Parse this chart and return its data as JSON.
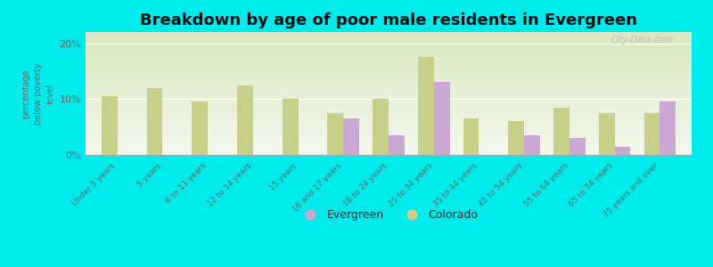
{
  "title": "Breakdown by age of poor male residents in Evergreen",
  "ylabel": "percentage\nbelow poverty\nlevel",
  "categories": [
    "Under 5 years",
    "5 years",
    "6 to 11 years",
    "12 to 14 years",
    "15 years",
    "16 and 17 years",
    "18 to 24 years",
    "25 to 34 years",
    "35 to 44 years",
    "45 to 54 years",
    "55 to 64 years",
    "65 to 74 years",
    "75 years and over"
  ],
  "evergreen": [
    0,
    0,
    0,
    0,
    0,
    6.5,
    3.5,
    13.0,
    0,
    3.5,
    3.0,
    1.5,
    9.5
  ],
  "colorado": [
    10.5,
    12.0,
    9.5,
    12.5,
    10.0,
    7.5,
    10.0,
    17.5,
    6.5,
    6.0,
    8.5,
    7.5,
    7.5
  ],
  "evergreen_color": "#c9a8d4",
  "colorado_color": "#c8cf88",
  "background_color": "#00ecec",
  "plot_bg_top": "#d8e8c0",
  "plot_bg_bottom": "#f4f8ee",
  "ylim": [
    0,
    22
  ],
  "yticks": [
    0,
    10,
    20
  ],
  "ytick_labels": [
    "0%",
    "10%",
    "20%"
  ],
  "watermark": "City-Data.com",
  "title_fontsize": 13,
  "bar_width": 0.35,
  "legend_evergreen": "Evergreen",
  "legend_colorado": "Colorado"
}
